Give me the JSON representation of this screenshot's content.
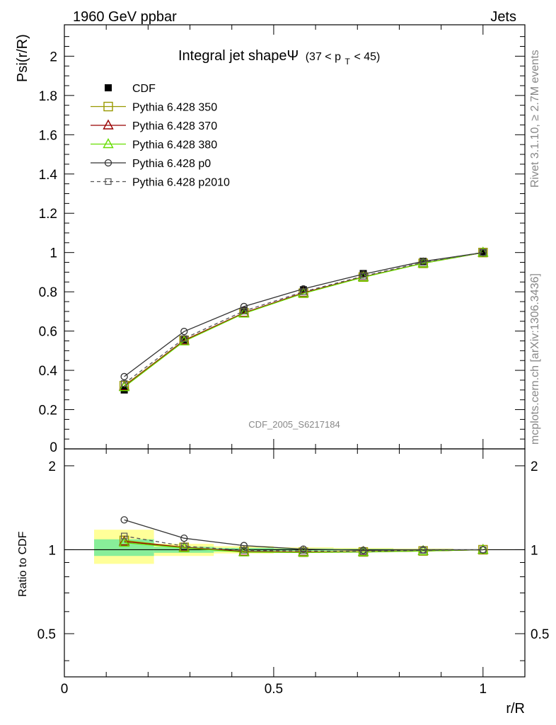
{
  "header": {
    "left": "1960 GeV ppbar",
    "right": "Jets"
  },
  "side_labels": {
    "rivet": "Rivet 3.1.10, ≥ 2.7M events",
    "mcplots": "mcplots.cern.ch [arXiv:1306.3436]"
  },
  "analysis_id": "CDF_2005_S6217184",
  "chart_data": [
    {
      "type": "line",
      "title": "Integral jet shapeΨ",
      "title_suffix": "(37 < p",
      "title_sub": "T",
      "title_end": " < 45)",
      "ylabel": "Psi(r/R)",
      "xlim": [
        0,
        1.1
      ],
      "ylim": [
        0,
        2.16
      ],
      "y_ticks": [
        "0.2",
        "0.4",
        "0.6",
        "0.8",
        "1",
        "1.2",
        "1.4",
        "1.6",
        "1.8",
        "2"
      ],
      "y_tick_values": [
        0.2,
        0.4,
        0.6,
        0.8,
        1.0,
        1.2,
        1.4,
        1.6,
        1.8,
        2.0
      ],
      "y_zero_label": "0",
      "x": [
        0.143,
        0.286,
        0.429,
        0.571,
        0.714,
        0.857,
        1.0
      ],
      "legend_position": "top-left",
      "series": [
        {
          "name": "CDF",
          "color": "#000000",
          "marker": "filled-square",
          "line": "none",
          "values": [
            0.3,
            0.555,
            0.705,
            0.81,
            0.893,
            0.955,
            1.0
          ]
        },
        {
          "name": "Pythia 6.428 350",
          "color": "#999900",
          "marker": "open-square",
          "line": "solid",
          "values": [
            0.322,
            0.553,
            0.693,
            0.793,
            0.875,
            0.945,
            1.0
          ]
        },
        {
          "name": "Pythia 6.428 370",
          "color": "#990000",
          "marker": "open-triangle",
          "line": "solid",
          "values": [
            0.318,
            0.552,
            0.693,
            0.795,
            0.876,
            0.946,
            1.0
          ]
        },
        {
          "name": "Pythia 6.428 380",
          "color": "#66dd00",
          "marker": "open-triangle",
          "line": "solid",
          "values": [
            0.315,
            0.548,
            0.69,
            0.792,
            0.874,
            0.945,
            1.0
          ]
        },
        {
          "name": "Pythia 6.428 p0",
          "color": "#333333",
          "marker": "open-circle",
          "line": "solid",
          "values": [
            0.368,
            0.598,
            0.725,
            0.815,
            0.89,
            0.955,
            1.0
          ]
        },
        {
          "name": "Pythia 6.428 p2010",
          "color": "#555555",
          "marker": "open-square-small",
          "line": "dashed",
          "values": [
            0.333,
            0.562,
            0.702,
            0.8,
            0.88,
            0.95,
            1.0
          ]
        }
      ]
    },
    {
      "type": "line",
      "ylabel": "Ratio to CDF",
      "xlabel": "r/R",
      "xlim": [
        0,
        1.1
      ],
      "ylim": [
        0.35,
        2.3
      ],
      "y_scale": "log",
      "y_ticks": [
        "0.5",
        "1",
        "2"
      ],
      "y_tick_values": [
        0.5,
        1,
        2
      ],
      "x_ticks": [
        "0",
        "0.5",
        "1"
      ],
      "x_tick_values": [
        0,
        0.5,
        1
      ],
      "x": [
        0.143,
        0.286,
        0.429,
        0.571,
        0.714,
        0.857,
        1.0
      ],
      "bands": {
        "x_low": [
          0.071,
          0.214,
          0.357,
          0.5,
          0.643,
          0.786,
          0.929
        ],
        "x_high": [
          0.214,
          0.357,
          0.5,
          0.643,
          0.786,
          0.929,
          1.071
        ],
        "stat_low": [
          0.95,
          0.975,
          0.985,
          0.99,
          0.993,
          0.996,
          0.999
        ],
        "stat_high": [
          1.09,
          1.025,
          1.015,
          1.01,
          1.007,
          1.004,
          1.001
        ],
        "total_low": [
          0.89,
          0.95,
          0.97,
          0.98,
          0.985,
          0.99,
          0.997
        ],
        "total_high": [
          1.18,
          1.05,
          1.03,
          1.02,
          1.015,
          1.01,
          1.003
        ],
        "stat_color": "#88ee99",
        "total_color": "#ffff99"
      },
      "series": [
        {
          "name": "Pythia 6.428 350",
          "color": "#999900",
          "marker": "open-square",
          "line": "solid",
          "values": [
            1.08,
            1.02,
            0.985,
            0.98,
            0.982,
            0.99,
            1.0
          ]
        },
        {
          "name": "Pythia 6.428 370",
          "color": "#990000",
          "marker": "open-triangle",
          "line": "solid",
          "values": [
            1.07,
            1.02,
            0.985,
            0.982,
            0.983,
            0.99,
            1.0
          ]
        },
        {
          "name": "Pythia 6.428 380",
          "color": "#66dd00",
          "marker": "open-triangle",
          "line": "solid",
          "values": [
            1.06,
            1.015,
            0.98,
            0.978,
            0.981,
            0.99,
            1.0
          ]
        },
        {
          "name": "Pythia 6.428 p0",
          "color": "#333333",
          "marker": "open-circle",
          "line": "solid",
          "values": [
            1.28,
            1.1,
            1.035,
            1.005,
            0.995,
            1.0,
            1.0
          ]
        },
        {
          "name": "Pythia 6.428 p2010",
          "color": "#555555",
          "marker": "open-square-small",
          "line": "dashed",
          "values": [
            1.12,
            1.03,
            0.995,
            0.99,
            0.986,
            0.995,
            1.0
          ]
        }
      ]
    }
  ]
}
